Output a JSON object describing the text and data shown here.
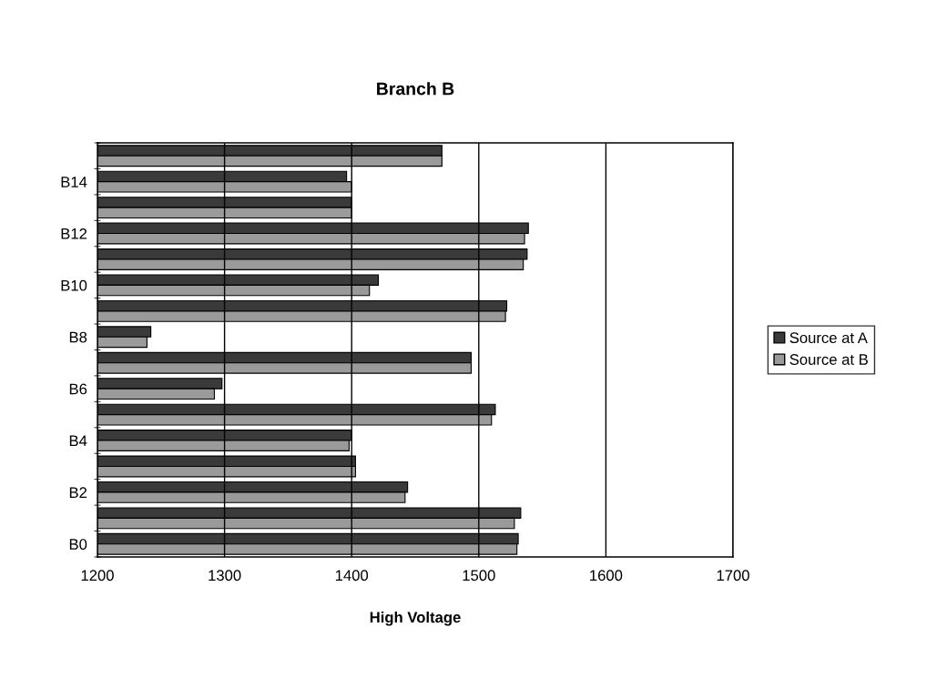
{
  "chart_data": {
    "type": "bar",
    "orientation": "horizontal",
    "title": "Branch B",
    "xlabel": "High Voltage",
    "categories": [
      null,
      "B14",
      null,
      "B12",
      null,
      "B10",
      null,
      "B8",
      null,
      "B6",
      null,
      "B4",
      null,
      "B2",
      null,
      "B0"
    ],
    "series": [
      {
        "name": "Source at A",
        "color": "#3a3a3a",
        "values": [
          1471,
          1396,
          1400,
          1539,
          1538,
          1421,
          1522,
          1242,
          1494,
          1298,
          1513,
          1400,
          1403,
          1444,
          1533,
          1531
        ]
      },
      {
        "name": "Source at B",
        "color": "#9a9a9a",
        "values": [
          1471,
          1400,
          1400,
          1536,
          1535,
          1414,
          1521,
          1239,
          1494,
          1292,
          1510,
          1398,
          1403,
          1442,
          1528,
          1530
        ]
      }
    ],
    "xlim": [
      1200,
      1700
    ],
    "xticks": [
      1200,
      1300,
      1400,
      1500,
      1600,
      1700
    ],
    "grid": "x",
    "legend": "right"
  }
}
